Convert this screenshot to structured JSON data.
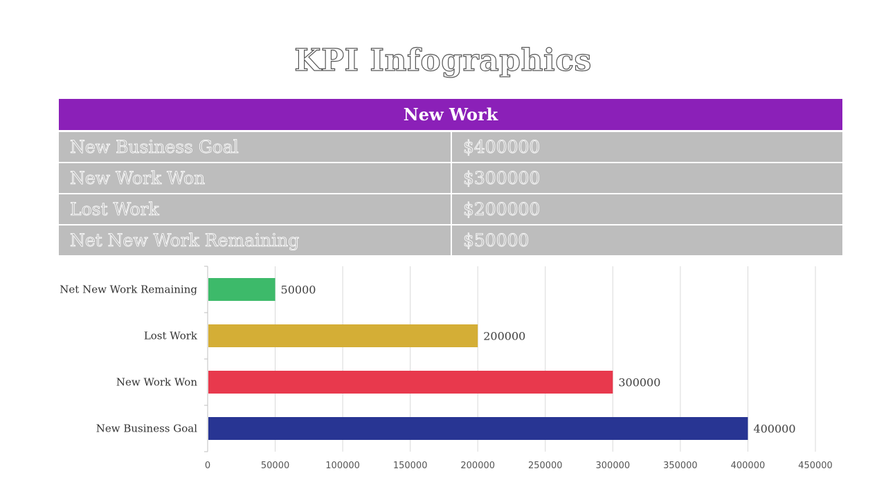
{
  "title": "KPI Infographics",
  "table": {
    "header": "New Work",
    "rows": [
      {
        "label": "New Business Goal",
        "value": "$400000"
      },
      {
        "label": "New Work Won",
        "value": "$300000"
      },
      {
        "label": "Lost Work",
        "value": "$200000"
      },
      {
        "label": "Net New Work Remaining",
        "value": "$50000"
      }
    ]
  },
  "chart_data": {
    "type": "bar",
    "orientation": "horizontal",
    "categories": [
      "New Business Goal",
      "New Work Won",
      "Lost Work",
      "Net New Work Remaining"
    ],
    "values": [
      400000,
      300000,
      200000,
      50000
    ],
    "data_labels": [
      "400000",
      "300000",
      "200000",
      "50000"
    ],
    "colors": [
      "#283593",
      "#e8394d",
      "#d4ae36",
      "#3dba6a"
    ],
    "xlim": [
      0,
      450000
    ],
    "x_ticks": [
      0,
      50000,
      100000,
      150000,
      200000,
      250000,
      300000,
      350000,
      400000,
      450000
    ],
    "x_tick_labels": [
      "0",
      "50000",
      "100000",
      "150000",
      "200000",
      "250000",
      "300000",
      "350000",
      "400000",
      "450000"
    ],
    "grid": "vertical",
    "legend": "none"
  }
}
